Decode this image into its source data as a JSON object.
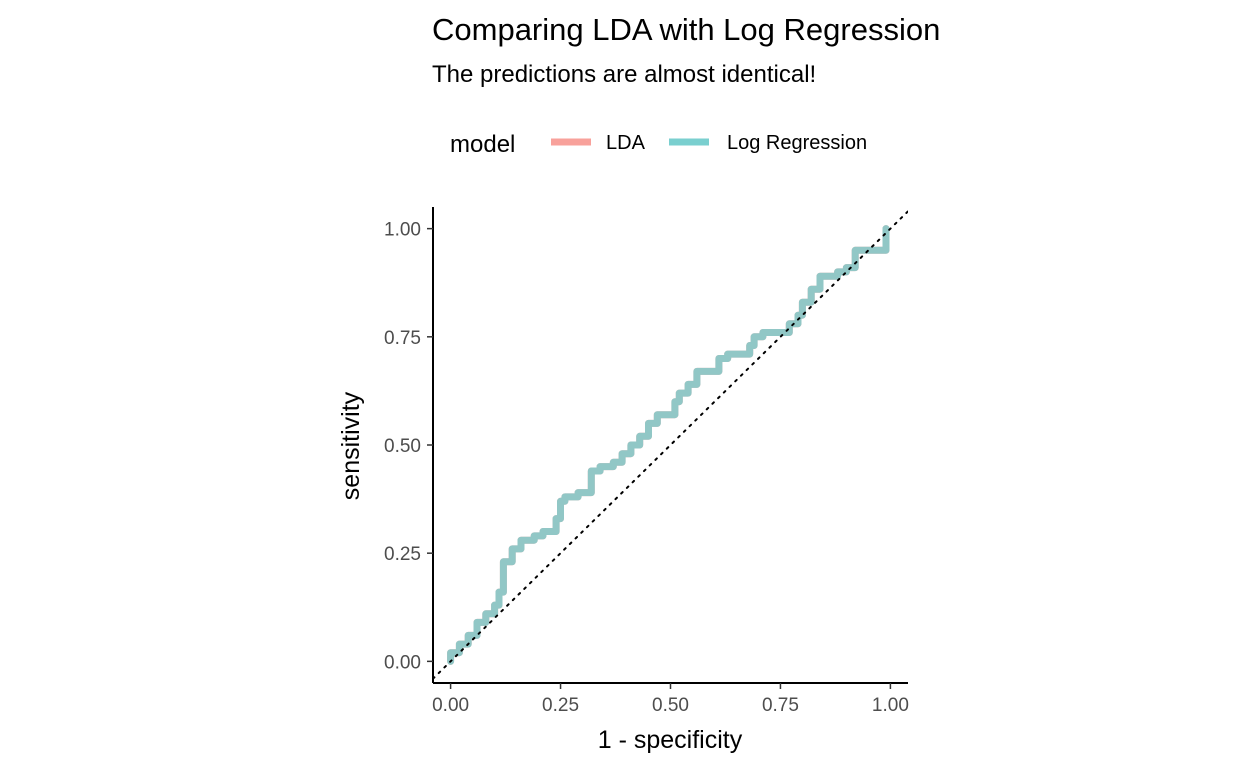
{
  "chart_data": {
    "type": "line",
    "title": "Comparing LDA with Log Regression",
    "subtitle": "The predictions are almost identical!",
    "xlabel": "1 - specificity",
    "ylabel": "sensitivity",
    "xlim": [
      -0.04,
      1.04
    ],
    "ylim": [
      -0.05,
      1.05
    ],
    "x_ticks": [
      0.0,
      0.25,
      0.5,
      0.75,
      1.0
    ],
    "y_ticks": [
      0.0,
      0.25,
      0.5,
      0.75,
      1.0
    ],
    "x_tick_labels": [
      "0.00",
      "0.25",
      "0.50",
      "0.75",
      "1.00"
    ],
    "y_tick_labels": [
      "0.00",
      "0.25",
      "0.50",
      "0.75",
      "1.00"
    ],
    "legend": {
      "title": "model",
      "position": "top"
    },
    "grid": false,
    "reference_line": "dotted diagonal y = x",
    "series": [
      {
        "name": "LDA",
        "color": "#F8A19B",
        "x": [
          0.0,
          0.0,
          0.02,
          0.02,
          0.04,
          0.04,
          0.06,
          0.06,
          0.08,
          0.08,
          0.1,
          0.1,
          0.11,
          0.11,
          0.12,
          0.12,
          0.14,
          0.14,
          0.16,
          0.16,
          0.19,
          0.19,
          0.21,
          0.21,
          0.24,
          0.24,
          0.25,
          0.25,
          0.26,
          0.26,
          0.29,
          0.29,
          0.32,
          0.32,
          0.34,
          0.34,
          0.37,
          0.37,
          0.39,
          0.39,
          0.41,
          0.41,
          0.43,
          0.43,
          0.45,
          0.45,
          0.47,
          0.47,
          0.51,
          0.51,
          0.52,
          0.52,
          0.54,
          0.54,
          0.56,
          0.56,
          0.61,
          0.61,
          0.63,
          0.63,
          0.68,
          0.68,
          0.69,
          0.69,
          0.71,
          0.71,
          0.77,
          0.77,
          0.79,
          0.79,
          0.8,
          0.8,
          0.82,
          0.82,
          0.84,
          0.84,
          0.88,
          0.88,
          0.9,
          0.9,
          0.92,
          0.92,
          0.99,
          0.99
        ],
        "y": [
          0.0,
          0.02,
          0.02,
          0.04,
          0.04,
          0.06,
          0.06,
          0.09,
          0.09,
          0.11,
          0.11,
          0.13,
          0.13,
          0.16,
          0.16,
          0.23,
          0.23,
          0.26,
          0.26,
          0.28,
          0.28,
          0.29,
          0.29,
          0.3,
          0.3,
          0.33,
          0.33,
          0.37,
          0.37,
          0.38,
          0.38,
          0.39,
          0.39,
          0.44,
          0.44,
          0.45,
          0.45,
          0.46,
          0.46,
          0.48,
          0.48,
          0.5,
          0.5,
          0.52,
          0.52,
          0.55,
          0.55,
          0.57,
          0.57,
          0.6,
          0.6,
          0.62,
          0.62,
          0.64,
          0.64,
          0.67,
          0.67,
          0.7,
          0.7,
          0.71,
          0.71,
          0.73,
          0.73,
          0.75,
          0.75,
          0.76,
          0.76,
          0.78,
          0.78,
          0.8,
          0.8,
          0.83,
          0.83,
          0.86,
          0.86,
          0.89,
          0.89,
          0.9,
          0.9,
          0.91,
          0.91,
          0.95,
          0.95,
          1.0
        ]
      },
      {
        "name": "Log Regression",
        "color": "#7ACFCF",
        "x": [
          0.0,
          0.0,
          0.02,
          0.02,
          0.04,
          0.04,
          0.06,
          0.06,
          0.08,
          0.08,
          0.1,
          0.1,
          0.11,
          0.11,
          0.12,
          0.12,
          0.14,
          0.14,
          0.16,
          0.16,
          0.19,
          0.19,
          0.21,
          0.21,
          0.24,
          0.24,
          0.25,
          0.25,
          0.26,
          0.26,
          0.29,
          0.29,
          0.32,
          0.32,
          0.34,
          0.34,
          0.37,
          0.37,
          0.39,
          0.39,
          0.41,
          0.41,
          0.43,
          0.43,
          0.45,
          0.45,
          0.47,
          0.47,
          0.51,
          0.51,
          0.52,
          0.52,
          0.54,
          0.54,
          0.56,
          0.56,
          0.61,
          0.61,
          0.63,
          0.63,
          0.68,
          0.68,
          0.69,
          0.69,
          0.71,
          0.71,
          0.77,
          0.77,
          0.79,
          0.79,
          0.8,
          0.8,
          0.82,
          0.82,
          0.84,
          0.84,
          0.88,
          0.88,
          0.9,
          0.9,
          0.92,
          0.92,
          0.99,
          0.99
        ],
        "y": [
          0.0,
          0.02,
          0.02,
          0.04,
          0.04,
          0.06,
          0.06,
          0.09,
          0.09,
          0.11,
          0.11,
          0.13,
          0.13,
          0.16,
          0.16,
          0.23,
          0.23,
          0.26,
          0.26,
          0.28,
          0.28,
          0.29,
          0.29,
          0.3,
          0.3,
          0.33,
          0.33,
          0.37,
          0.37,
          0.38,
          0.38,
          0.39,
          0.39,
          0.44,
          0.44,
          0.45,
          0.45,
          0.46,
          0.46,
          0.48,
          0.48,
          0.5,
          0.5,
          0.52,
          0.52,
          0.55,
          0.55,
          0.57,
          0.57,
          0.6,
          0.6,
          0.62,
          0.62,
          0.64,
          0.64,
          0.67,
          0.67,
          0.7,
          0.7,
          0.71,
          0.71,
          0.73,
          0.73,
          0.75,
          0.75,
          0.76,
          0.76,
          0.78,
          0.78,
          0.8,
          0.8,
          0.83,
          0.83,
          0.86,
          0.86,
          0.89,
          0.89,
          0.9,
          0.9,
          0.91,
          0.91,
          0.95,
          0.95,
          1.0
        ]
      }
    ]
  }
}
